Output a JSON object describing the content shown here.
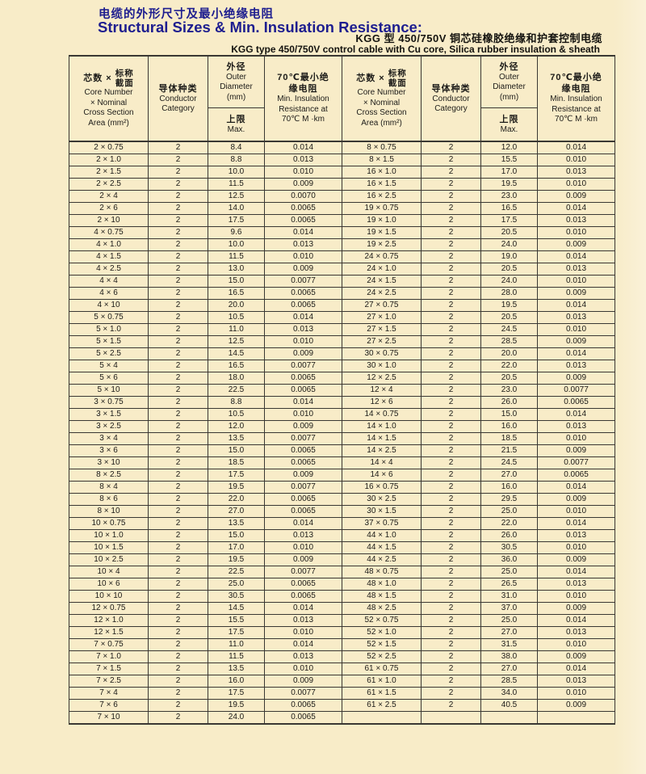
{
  "colors": {
    "background": "#f8ecc8",
    "title_blue": "#1d1d8f",
    "table_line": "#3a3833",
    "text": "#1c1b18"
  },
  "page": {
    "title_zh": "电缆的外形尺寸及最小绝缘电阻",
    "title_en": "Structural Sizes & Min. Insulation Resistance:",
    "subtitle_zh": "KGG 型 450/750V 铜芯硅橡胶绝缘和护套控制电缆",
    "subtitle_en": "KGG type 450/750V control cable with Cu core, Silica rubber insulation & sheath"
  },
  "table": {
    "header": {
      "core_zh_prefix": "芯数 ×",
      "core_zh_top": "标称",
      "core_zh_bottom": "截面",
      "core_en": [
        "Core Number",
        "× Nominal",
        "Cross Section",
        "Area (mm²)"
      ],
      "conductor_zh": "导体种类",
      "conductor_en": [
        "Conductor",
        "Category"
      ],
      "od_zh": "外径",
      "od_en": [
        "Outer",
        "Diameter",
        "(mm)"
      ],
      "od_max_zh": "上限",
      "od_max_en": "Max.",
      "ir_zh": [
        "70℃最小绝",
        "缘电阻"
      ],
      "ir_en": [
        "Min. Insulation",
        "Resistance at",
        "70℃ M ·km"
      ]
    },
    "left_rows": [
      [
        "2 × 0.75",
        "2",
        "8.4",
        "0.014"
      ],
      [
        "2 × 1.0",
        "2",
        "8.8",
        "0.013"
      ],
      [
        "2 × 1.5",
        "2",
        "10.0",
        "0.010"
      ],
      [
        "2 × 2.5",
        "2",
        "11.5",
        "0.009"
      ],
      [
        "2 × 4",
        "2",
        "12.5",
        "0.0070"
      ],
      [
        "2 × 6",
        "2",
        "14.0",
        "0.0065"
      ],
      [
        "2 × 10",
        "2",
        "17.5",
        "0.0065"
      ],
      [
        "4 × 0.75",
        "2",
        "9.6",
        "0.014"
      ],
      [
        "4 × 1.0",
        "2",
        "10.0",
        "0.013"
      ],
      [
        "4 × 1.5",
        "2",
        "11.5",
        "0.010"
      ],
      [
        "4 × 2.5",
        "2",
        "13.0",
        "0.009"
      ],
      [
        "4 × 4",
        "2",
        "15.0",
        "0.0077"
      ],
      [
        "4 × 6",
        "2",
        "16.5",
        "0.0065"
      ],
      [
        "4 × 10",
        "2",
        "20.0",
        "0.0065"
      ],
      [
        "5 × 0.75",
        "2",
        "10.5",
        "0.014"
      ],
      [
        "5 × 1.0",
        "2",
        "11.0",
        "0.013"
      ],
      [
        "5 × 1.5",
        "2",
        "12.5",
        "0.010"
      ],
      [
        "5 × 2.5",
        "2",
        "14.5",
        "0.009"
      ],
      [
        "5 × 4",
        "2",
        "16.5",
        "0.0077"
      ],
      [
        "5 × 6",
        "2",
        "18.0",
        "0.0065"
      ],
      [
        "5 × 10",
        "2",
        "22.5",
        "0.0065"
      ],
      [
        "3 × 0.75",
        "2",
        "8.8",
        "0.014"
      ],
      [
        "3 × 1.5",
        "2",
        "10.5",
        "0.010"
      ],
      [
        "3 × 2.5",
        "2",
        "12.0",
        "0.009"
      ],
      [
        "3 × 4",
        "2",
        "13.5",
        "0.0077"
      ],
      [
        "3 × 6",
        "2",
        "15.0",
        "0.0065"
      ],
      [
        "3 × 10",
        "2",
        "18.5",
        "0.0065"
      ],
      [
        "8 × 2.5",
        "2",
        "17.5",
        "0.009"
      ],
      [
        "8 × 4",
        "2",
        "19.5",
        "0.0077"
      ],
      [
        "8 × 6",
        "2",
        "22.0",
        "0.0065"
      ],
      [
        "8 × 10",
        "2",
        "27.0",
        "0.0065"
      ],
      [
        "10 × 0.75",
        "2",
        "13.5",
        "0.014"
      ],
      [
        "10 × 1.0",
        "2",
        "15.0",
        "0.013"
      ],
      [
        "10 × 1.5",
        "2",
        "17.0",
        "0.010"
      ],
      [
        "10 × 2.5",
        "2",
        "19.5",
        "0.009"
      ],
      [
        "10 × 4",
        "2",
        "22.5",
        "0.0077"
      ],
      [
        "10 × 6",
        "2",
        "25.0",
        "0.0065"
      ],
      [
        "10 × 10",
        "2",
        "30.5",
        "0.0065"
      ],
      [
        "12 × 0.75",
        "2",
        "14.5",
        "0.014"
      ],
      [
        "12 × 1.0",
        "2",
        "15.5",
        "0.013"
      ],
      [
        "12 × 1.5",
        "2",
        "17.5",
        "0.010"
      ],
      [
        "7 × 0.75",
        "2",
        "11.0",
        "0.014"
      ],
      [
        "7 × 1.0",
        "2",
        "11.5",
        "0.013"
      ],
      [
        "7 × 1.5",
        "2",
        "13.5",
        "0.010"
      ],
      [
        "7 × 2.5",
        "2",
        "16.0",
        "0.009"
      ],
      [
        "7 × 4",
        "2",
        "17.5",
        "0.0077"
      ],
      [
        "7 × 6",
        "2",
        "19.5",
        "0.0065"
      ],
      [
        "7 × 10",
        "2",
        "24.0",
        "0.0065"
      ]
    ],
    "right_rows": [
      [
        "8 × 0.75",
        "2",
        "12.0",
        "0.014"
      ],
      [
        "8 × 1.5",
        "2",
        "15.5",
        "0.010"
      ],
      [
        "16 × 1.0",
        "2",
        "17.0",
        "0.013"
      ],
      [
        "16 × 1.5",
        "2",
        "19.5",
        "0.010"
      ],
      [
        "16 × 2.5",
        "2",
        "23.0",
        "0.009"
      ],
      [
        "19 × 0.75",
        "2",
        "16.5",
        "0.014"
      ],
      [
        "19 × 1.0",
        "2",
        "17.5",
        "0.013"
      ],
      [
        "19 × 1.5",
        "2",
        "20.5",
        "0.010"
      ],
      [
        "19 × 2.5",
        "2",
        "24.0",
        "0.009"
      ],
      [
        "24 × 0.75",
        "2",
        "19.0",
        "0.014"
      ],
      [
        "24 × 1.0",
        "2",
        "20.5",
        "0.013"
      ],
      [
        "24 × 1.5",
        "2",
        "24.0",
        "0.010"
      ],
      [
        "24 × 2.5",
        "2",
        "28.0",
        "0.009"
      ],
      [
        "27 × 0.75",
        "2",
        "19.5",
        "0.014"
      ],
      [
        "27 × 1.0",
        "2",
        "20.5",
        "0.013"
      ],
      [
        "27 × 1.5",
        "2",
        "24.5",
        "0.010"
      ],
      [
        "27 × 2.5",
        "2",
        "28.5",
        "0.009"
      ],
      [
        "30 × 0.75",
        "2",
        "20.0",
        "0.014"
      ],
      [
        "30 × 1.0",
        "2",
        "22.0",
        "0.013"
      ],
      [
        "12 × 2.5",
        "2",
        "20.5",
        "0.009"
      ],
      [
        "12 × 4",
        "2",
        "23.0",
        "0.0077"
      ],
      [
        "12 × 6",
        "2",
        "26.0",
        "0.0065"
      ],
      [
        "14 × 0.75",
        "2",
        "15.0",
        "0.014"
      ],
      [
        "14 × 1.0",
        "2",
        "16.0",
        "0.013"
      ],
      [
        "14 × 1.5",
        "2",
        "18.5",
        "0.010"
      ],
      [
        "14 × 2.5",
        "2",
        "21.5",
        "0.009"
      ],
      [
        "14 × 4",
        "2",
        "24.5",
        "0.0077"
      ],
      [
        "14 × 6",
        "2",
        "27.0",
        "0.0065"
      ],
      [
        "16 × 0.75",
        "2",
        "16.0",
        "0.014"
      ],
      [
        "30 × 2.5",
        "2",
        "29.5",
        "0.009"
      ],
      [
        "30 × 1.5",
        "2",
        "25.0",
        "0.010"
      ],
      [
        "37 × 0.75",
        "2",
        "22.0",
        "0.014"
      ],
      [
        "44 × 1.0",
        "2",
        "26.0",
        "0.013"
      ],
      [
        "44 × 1.5",
        "2",
        "30.5",
        "0.010"
      ],
      [
        "44 × 2.5",
        "2",
        "36.0",
        "0.009"
      ],
      [
        "48 × 0.75",
        "2",
        "25.0",
        "0.014"
      ],
      [
        "48 × 1.0",
        "2",
        "26.5",
        "0.013"
      ],
      [
        "48 × 1.5",
        "2",
        "31.0",
        "0.010"
      ],
      [
        "48 × 2.5",
        "2",
        "37.0",
        "0.009"
      ],
      [
        "52 × 0.75",
        "2",
        "25.0",
        "0.014"
      ],
      [
        "52 × 1.0",
        "2",
        "27.0",
        "0.013"
      ],
      [
        "52 × 1.5",
        "2",
        "31.5",
        "0.010"
      ],
      [
        "52 × 2.5",
        "2",
        "38.0",
        "0.009"
      ],
      [
        "61 × 0.75",
        "2",
        "27.0",
        "0.014"
      ],
      [
        "61 × 1.0",
        "2",
        "28.5",
        "0.013"
      ],
      [
        "61 × 1.5",
        "2",
        "34.0",
        "0.010"
      ],
      [
        "61 × 2.5",
        "2",
        "40.5",
        "0.009"
      ],
      [
        "",
        "",
        "",
        ""
      ]
    ]
  }
}
